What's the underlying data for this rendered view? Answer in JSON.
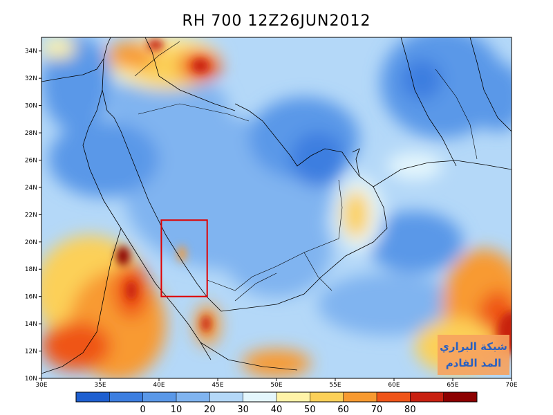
{
  "title": "RH 700  12Z26JUN2012",
  "map": {
    "lon_range": [
      30,
      70
    ],
    "lat_range": [
      10,
      35
    ],
    "lat_ticks": [
      {
        "v": 10,
        "label": "10N"
      },
      {
        "v": 12,
        "label": "12N"
      },
      {
        "v": 14,
        "label": "14N"
      },
      {
        "v": 16,
        "label": "16N"
      },
      {
        "v": 18,
        "label": "18N"
      },
      {
        "v": 20,
        "label": "20N"
      },
      {
        "v": 22,
        "label": "22N"
      },
      {
        "v": 24,
        "label": "24N"
      },
      {
        "v": 26,
        "label": "26N"
      },
      {
        "v": 28,
        "label": "28N"
      },
      {
        "v": 30,
        "label": "30N"
      },
      {
        "v": 32,
        "label": "32N"
      },
      {
        "v": 34,
        "label": "34N"
      }
    ],
    "lon_ticks": [
      {
        "v": 30,
        "label": "30E"
      },
      {
        "v": 35,
        "label": "35E"
      },
      {
        "v": 40,
        "label": "40E"
      },
      {
        "v": 45,
        "label": "45E"
      },
      {
        "v": 50,
        "label": "50E"
      },
      {
        "v": 55,
        "label": "55E"
      },
      {
        "v": 60,
        "label": "60E"
      },
      {
        "v": 65,
        "label": "65E"
      },
      {
        "v": 70,
        "label": "70E"
      }
    ],
    "highlight_box": {
      "lon": [
        40.2,
        44.1
      ],
      "lat": [
        16.0,
        21.6
      ],
      "color": "#e00000"
    }
  },
  "colorbar": {
    "colors": [
      "#1e5fd0",
      "#3c7ee0",
      "#5a98e8",
      "#80b4f0",
      "#b4d8f8",
      "#e4f6fc",
      "#fff3a8",
      "#fcd058",
      "#f89a30",
      "#ef5418",
      "#c82010",
      "#8c0000"
    ],
    "labels": [
      {
        "v": 0,
        "label": "0"
      },
      {
        "v": 10,
        "label": "10"
      },
      {
        "v": 20,
        "label": "20"
      },
      {
        "v": 30,
        "label": "30"
      },
      {
        "v": 40,
        "label": "40"
      },
      {
        "v": 50,
        "label": "50"
      },
      {
        "v": 60,
        "label": "60"
      },
      {
        "v": 70,
        "label": "70"
      },
      {
        "v": 80,
        "label": "80"
      }
    ]
  },
  "watermark": {
    "line1": "شبكة البراري",
    "line2": "المد القادم",
    "bg": "#f6a25e"
  }
}
